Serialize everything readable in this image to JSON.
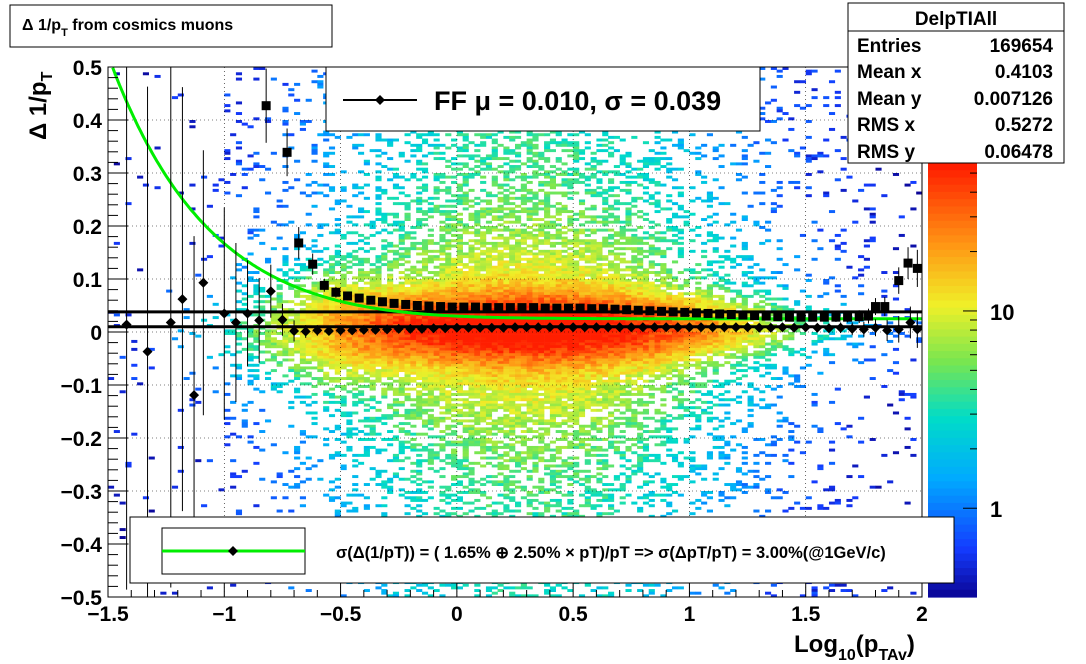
{
  "title_box": {
    "main": "Δ 1/p",
    "sub": "T",
    "tail": " from cosmics muons"
  },
  "stats": {
    "name": "DelpTIAll",
    "rows": [
      {
        "label": "Entries",
        "value": "169654"
      },
      {
        "label": "Mean x",
        "value": "0.4103"
      },
      {
        "label": "Mean y",
        "value": "0.007126"
      },
      {
        "label": "RMS x",
        "value": "0.5272"
      },
      {
        "label": "RMS y",
        "value": "0.06478"
      }
    ]
  },
  "legend_top": {
    "text": "FF μ =  0.010, σ =   0.039"
  },
  "legend_bottom": {
    "text": "σ(Δ(1/pT)) = ( 1.65% ⊕  2.50% × pT)/pT => σ(ΔpT/pT) =  3.00%(@1GeV/c)"
  },
  "colors": {
    "fit_curve": "#00ee00",
    "marker": "#000000",
    "hist_low": "#1a3cff",
    "hist_high": "#ff2a00"
  },
  "chart_data": {
    "type": "heatmap",
    "ylabel_main": "Δ 1/p",
    "ylabel_sub": "T",
    "xlabel_main": "Log",
    "xlabel_sub1": "10",
    "xlabel_paren": "(p",
    "xlabel_sub2": "TAv",
    "xlabel_close": ")",
    "xlim": [
      -1.5,
      2.0
    ],
    "ylim": [
      -0.5,
      0.5
    ],
    "x_ticks": [
      {
        "v": -1.5,
        "label": "−1.5"
      },
      {
        "v": -1,
        "label": "−1"
      },
      {
        "v": -0.5,
        "label": "−0.5"
      },
      {
        "v": 0,
        "label": "0"
      },
      {
        "v": 0.5,
        "label": "0.5"
      },
      {
        "v": 1,
        "label": "1"
      },
      {
        "v": 1.5,
        "label": "1.5"
      },
      {
        "v": 2,
        "label": "2"
      }
    ],
    "y_ticks": [
      {
        "v": 0.5,
        "label": "0.5"
      },
      {
        "v": 0.4,
        "label": "0.4"
      },
      {
        "v": 0.3,
        "label": "0.3"
      },
      {
        "v": 0.2,
        "label": "0.2"
      },
      {
        "v": 0.1,
        "label": "0.1"
      },
      {
        "v": 0,
        "label": "0"
      },
      {
        "v": -0.1,
        "label": "−0.1"
      },
      {
        "v": -0.2,
        "label": "−0.2"
      },
      {
        "v": -0.3,
        "label": "−0.3"
      },
      {
        "v": -0.4,
        "label": "−0.4"
      },
      {
        "v": -0.5,
        "label": "−0.5"
      }
    ],
    "colorbar_scale": "log",
    "colorbar_labels": [
      {
        "v": 10,
        "label": "10"
      },
      {
        "v": 1,
        "label": "1"
      }
    ],
    "grid": true,
    "hlines": [
      0.038,
      0.01
    ],
    "mean_points": [
      {
        "x": -1.42,
        "y": 0.014,
        "ey": 0.5
      },
      {
        "x": -1.33,
        "y": -0.037,
        "ey": 0.5
      },
      {
        "x": -1.23,
        "y": 0.018,
        "ey": 0.5
      },
      {
        "x": -1.18,
        "y": 0.062,
        "ey": 0.4
      },
      {
        "x": -1.13,
        "y": -0.119,
        "ey": 0.3
      },
      {
        "x": -1.09,
        "y": 0.093,
        "ey": 0.25
      },
      {
        "x": -1.0,
        "y": 0.035,
        "ey": 0.2
      },
      {
        "x": -0.95,
        "y": 0.018,
        "ey": 0.15
      },
      {
        "x": -0.9,
        "y": 0.035,
        "ey": 0.1
      },
      {
        "x": -0.85,
        "y": 0.022,
        "ey": 0.08
      },
      {
        "x": -0.8,
        "y": 0.077,
        "ey": 0.05
      },
      {
        "x": -0.75,
        "y": 0.023,
        "ey": 0.03
      },
      {
        "x": -0.7,
        "y": 0.002,
        "ey": 0.02
      },
      {
        "x": -0.65,
        "y": 0.001,
        "ey": 0.012
      },
      {
        "x": -0.6,
        "y": 0.003,
        "ey": 0.01
      },
      {
        "x": -0.55,
        "y": 0.002,
        "ey": 0.008
      },
      {
        "x": -0.5,
        "y": 0.003,
        "ey": 0.006
      },
      {
        "x": -0.45,
        "y": 0.003,
        "ey": 0.005
      },
      {
        "x": -0.4,
        "y": 0.004,
        "ey": 0.004
      },
      {
        "x": -0.35,
        "y": 0.004,
        "ey": 0.003
      },
      {
        "x": -0.3,
        "y": 0.005,
        "ey": 0.003
      },
      {
        "x": -0.25,
        "y": 0.006,
        "ey": 0.002
      },
      {
        "x": -0.2,
        "y": 0.006,
        "ey": 0.002
      },
      {
        "x": -0.15,
        "y": 0.006,
        "ey": 0.002
      },
      {
        "x": -0.1,
        "y": 0.007,
        "ey": 0.002
      },
      {
        "x": -0.05,
        "y": 0.007,
        "ey": 0.002
      },
      {
        "x": 0.0,
        "y": 0.008,
        "ey": 0.002
      },
      {
        "x": 0.05,
        "y": 0.008,
        "ey": 0.002
      },
      {
        "x": 0.1,
        "y": 0.008,
        "ey": 0.002
      },
      {
        "x": 0.15,
        "y": 0.008,
        "ey": 0.002
      },
      {
        "x": 0.2,
        "y": 0.008,
        "ey": 0.002
      },
      {
        "x": 0.25,
        "y": 0.009,
        "ey": 0.002
      },
      {
        "x": 0.3,
        "y": 0.009,
        "ey": 0.002
      },
      {
        "x": 0.35,
        "y": 0.009,
        "ey": 0.002
      },
      {
        "x": 0.4,
        "y": 0.009,
        "ey": 0.002
      },
      {
        "x": 0.45,
        "y": 0.009,
        "ey": 0.002
      },
      {
        "x": 0.5,
        "y": 0.009,
        "ey": 0.002
      },
      {
        "x": 0.55,
        "y": 0.009,
        "ey": 0.002
      },
      {
        "x": 0.6,
        "y": 0.009,
        "ey": 0.002
      },
      {
        "x": 0.65,
        "y": 0.009,
        "ey": 0.002
      },
      {
        "x": 0.7,
        "y": 0.009,
        "ey": 0.002
      },
      {
        "x": 0.75,
        "y": 0.009,
        "ey": 0.002
      },
      {
        "x": 0.8,
        "y": 0.009,
        "ey": 0.002
      },
      {
        "x": 0.85,
        "y": 0.009,
        "ey": 0.002
      },
      {
        "x": 0.9,
        "y": 0.009,
        "ey": 0.002
      },
      {
        "x": 0.95,
        "y": 0.009,
        "ey": 0.002
      },
      {
        "x": 1.0,
        "y": 0.009,
        "ey": 0.002
      },
      {
        "x": 1.05,
        "y": 0.009,
        "ey": 0.003
      },
      {
        "x": 1.1,
        "y": 0.009,
        "ey": 0.003
      },
      {
        "x": 1.15,
        "y": 0.009,
        "ey": 0.003
      },
      {
        "x": 1.2,
        "y": 0.009,
        "ey": 0.003
      },
      {
        "x": 1.25,
        "y": 0.009,
        "ey": 0.004
      },
      {
        "x": 1.3,
        "y": 0.008,
        "ey": 0.004
      },
      {
        "x": 1.35,
        "y": 0.008,
        "ey": 0.005
      },
      {
        "x": 1.4,
        "y": 0.009,
        "ey": 0.006
      },
      {
        "x": 1.45,
        "y": 0.008,
        "ey": 0.006
      },
      {
        "x": 1.5,
        "y": 0.009,
        "ey": 0.007
      },
      {
        "x": 1.55,
        "y": 0.008,
        "ey": 0.008
      },
      {
        "x": 1.6,
        "y": 0.007,
        "ey": 0.009
      },
      {
        "x": 1.65,
        "y": 0.008,
        "ey": 0.01
      },
      {
        "x": 1.7,
        "y": 0.006,
        "ey": 0.012
      },
      {
        "x": 1.75,
        "y": 0.005,
        "ey": 0.014
      },
      {
        "x": 1.8,
        "y": 0.008,
        "ey": 0.016
      },
      {
        "x": 1.85,
        "y": 0.003,
        "ey": 0.02
      },
      {
        "x": 1.9,
        "y": 0.005,
        "ey": 0.025
      },
      {
        "x": 1.95,
        "y": 0.018,
        "ey": 0.03
      },
      {
        "x": 1.98,
        "y": 0.005,
        "ey": 0.035
      }
    ],
    "sigma_points": [
      {
        "x": -0.82,
        "y": 0.427,
        "ey": 0.07
      },
      {
        "x": -0.73,
        "y": 0.339,
        "ey": 0.045
      },
      {
        "x": -0.68,
        "y": 0.168,
        "ey": 0.03
      },
      {
        "x": -0.62,
        "y": 0.128,
        "ey": 0.02
      },
      {
        "x": -0.57,
        "y": 0.088,
        "ey": 0.012
      },
      {
        "x": -0.52,
        "y": 0.075,
        "ey": 0.01
      },
      {
        "x": -0.47,
        "y": 0.068,
        "ey": 0.008
      },
      {
        "x": -0.42,
        "y": 0.064,
        "ey": 0.006
      },
      {
        "x": -0.37,
        "y": 0.06,
        "ey": 0.005
      },
      {
        "x": -0.32,
        "y": 0.057,
        "ey": 0.004
      },
      {
        "x": -0.27,
        "y": 0.054,
        "ey": 0.003
      },
      {
        "x": -0.22,
        "y": 0.052,
        "ey": 0.003
      },
      {
        "x": -0.17,
        "y": 0.05,
        "ey": 0.003
      },
      {
        "x": -0.12,
        "y": 0.049,
        "ey": 0.002
      },
      {
        "x": -0.07,
        "y": 0.048,
        "ey": 0.002
      },
      {
        "x": -0.02,
        "y": 0.047,
        "ey": 0.002
      },
      {
        "x": 0.03,
        "y": 0.047,
        "ey": 0.002
      },
      {
        "x": 0.08,
        "y": 0.047,
        "ey": 0.002
      },
      {
        "x": 0.13,
        "y": 0.046,
        "ey": 0.002
      },
      {
        "x": 0.18,
        "y": 0.046,
        "ey": 0.002
      },
      {
        "x": 0.23,
        "y": 0.046,
        "ey": 0.002
      },
      {
        "x": 0.28,
        "y": 0.046,
        "ey": 0.002
      },
      {
        "x": 0.33,
        "y": 0.046,
        "ey": 0.002
      },
      {
        "x": 0.38,
        "y": 0.045,
        "ey": 0.002
      },
      {
        "x": 0.43,
        "y": 0.045,
        "ey": 0.002
      },
      {
        "x": 0.48,
        "y": 0.045,
        "ey": 0.002
      },
      {
        "x": 0.53,
        "y": 0.045,
        "ey": 0.002
      },
      {
        "x": 0.58,
        "y": 0.044,
        "ey": 0.002
      },
      {
        "x": 0.63,
        "y": 0.044,
        "ey": 0.002
      },
      {
        "x": 0.68,
        "y": 0.043,
        "ey": 0.002
      },
      {
        "x": 0.73,
        "y": 0.042,
        "ey": 0.002
      },
      {
        "x": 0.78,
        "y": 0.041,
        "ey": 0.002
      },
      {
        "x": 0.83,
        "y": 0.04,
        "ey": 0.002
      },
      {
        "x": 0.88,
        "y": 0.039,
        "ey": 0.002
      },
      {
        "x": 0.93,
        "y": 0.038,
        "ey": 0.002
      },
      {
        "x": 0.98,
        "y": 0.037,
        "ey": 0.002
      },
      {
        "x": 1.03,
        "y": 0.036,
        "ey": 0.002
      },
      {
        "x": 1.08,
        "y": 0.035,
        "ey": 0.003
      },
      {
        "x": 1.13,
        "y": 0.034,
        "ey": 0.003
      },
      {
        "x": 1.18,
        "y": 0.033,
        "ey": 0.003
      },
      {
        "x": 1.23,
        "y": 0.032,
        "ey": 0.003
      },
      {
        "x": 1.28,
        "y": 0.031,
        "ey": 0.004
      },
      {
        "x": 1.33,
        "y": 0.03,
        "ey": 0.004
      },
      {
        "x": 1.38,
        "y": 0.029,
        "ey": 0.005
      },
      {
        "x": 1.43,
        "y": 0.028,
        "ey": 0.005
      },
      {
        "x": 1.48,
        "y": 0.028,
        "ey": 0.006
      },
      {
        "x": 1.53,
        "y": 0.028,
        "ey": 0.007
      },
      {
        "x": 1.58,
        "y": 0.028,
        "ey": 0.008
      },
      {
        "x": 1.63,
        "y": 0.028,
        "ey": 0.009
      },
      {
        "x": 1.68,
        "y": 0.028,
        "ey": 0.01
      },
      {
        "x": 1.73,
        "y": 0.029,
        "ey": 0.012
      },
      {
        "x": 1.77,
        "y": 0.03,
        "ey": 0.014
      },
      {
        "x": 1.8,
        "y": 0.048,
        "ey": 0.016
      },
      {
        "x": 1.84,
        "y": 0.048,
        "ey": 0.018
      },
      {
        "x": 1.9,
        "y": 0.097,
        "ey": 0.025
      },
      {
        "x": 1.94,
        "y": 0.13,
        "ey": 0.03
      },
      {
        "x": 1.98,
        "y": 0.12,
        "ey": 0.035
      }
    ],
    "fit": {
      "a_percent": 1.65,
      "b_percent": 2.5,
      "curve": "sqrt(a^2/p^2 + b^2)"
    }
  }
}
